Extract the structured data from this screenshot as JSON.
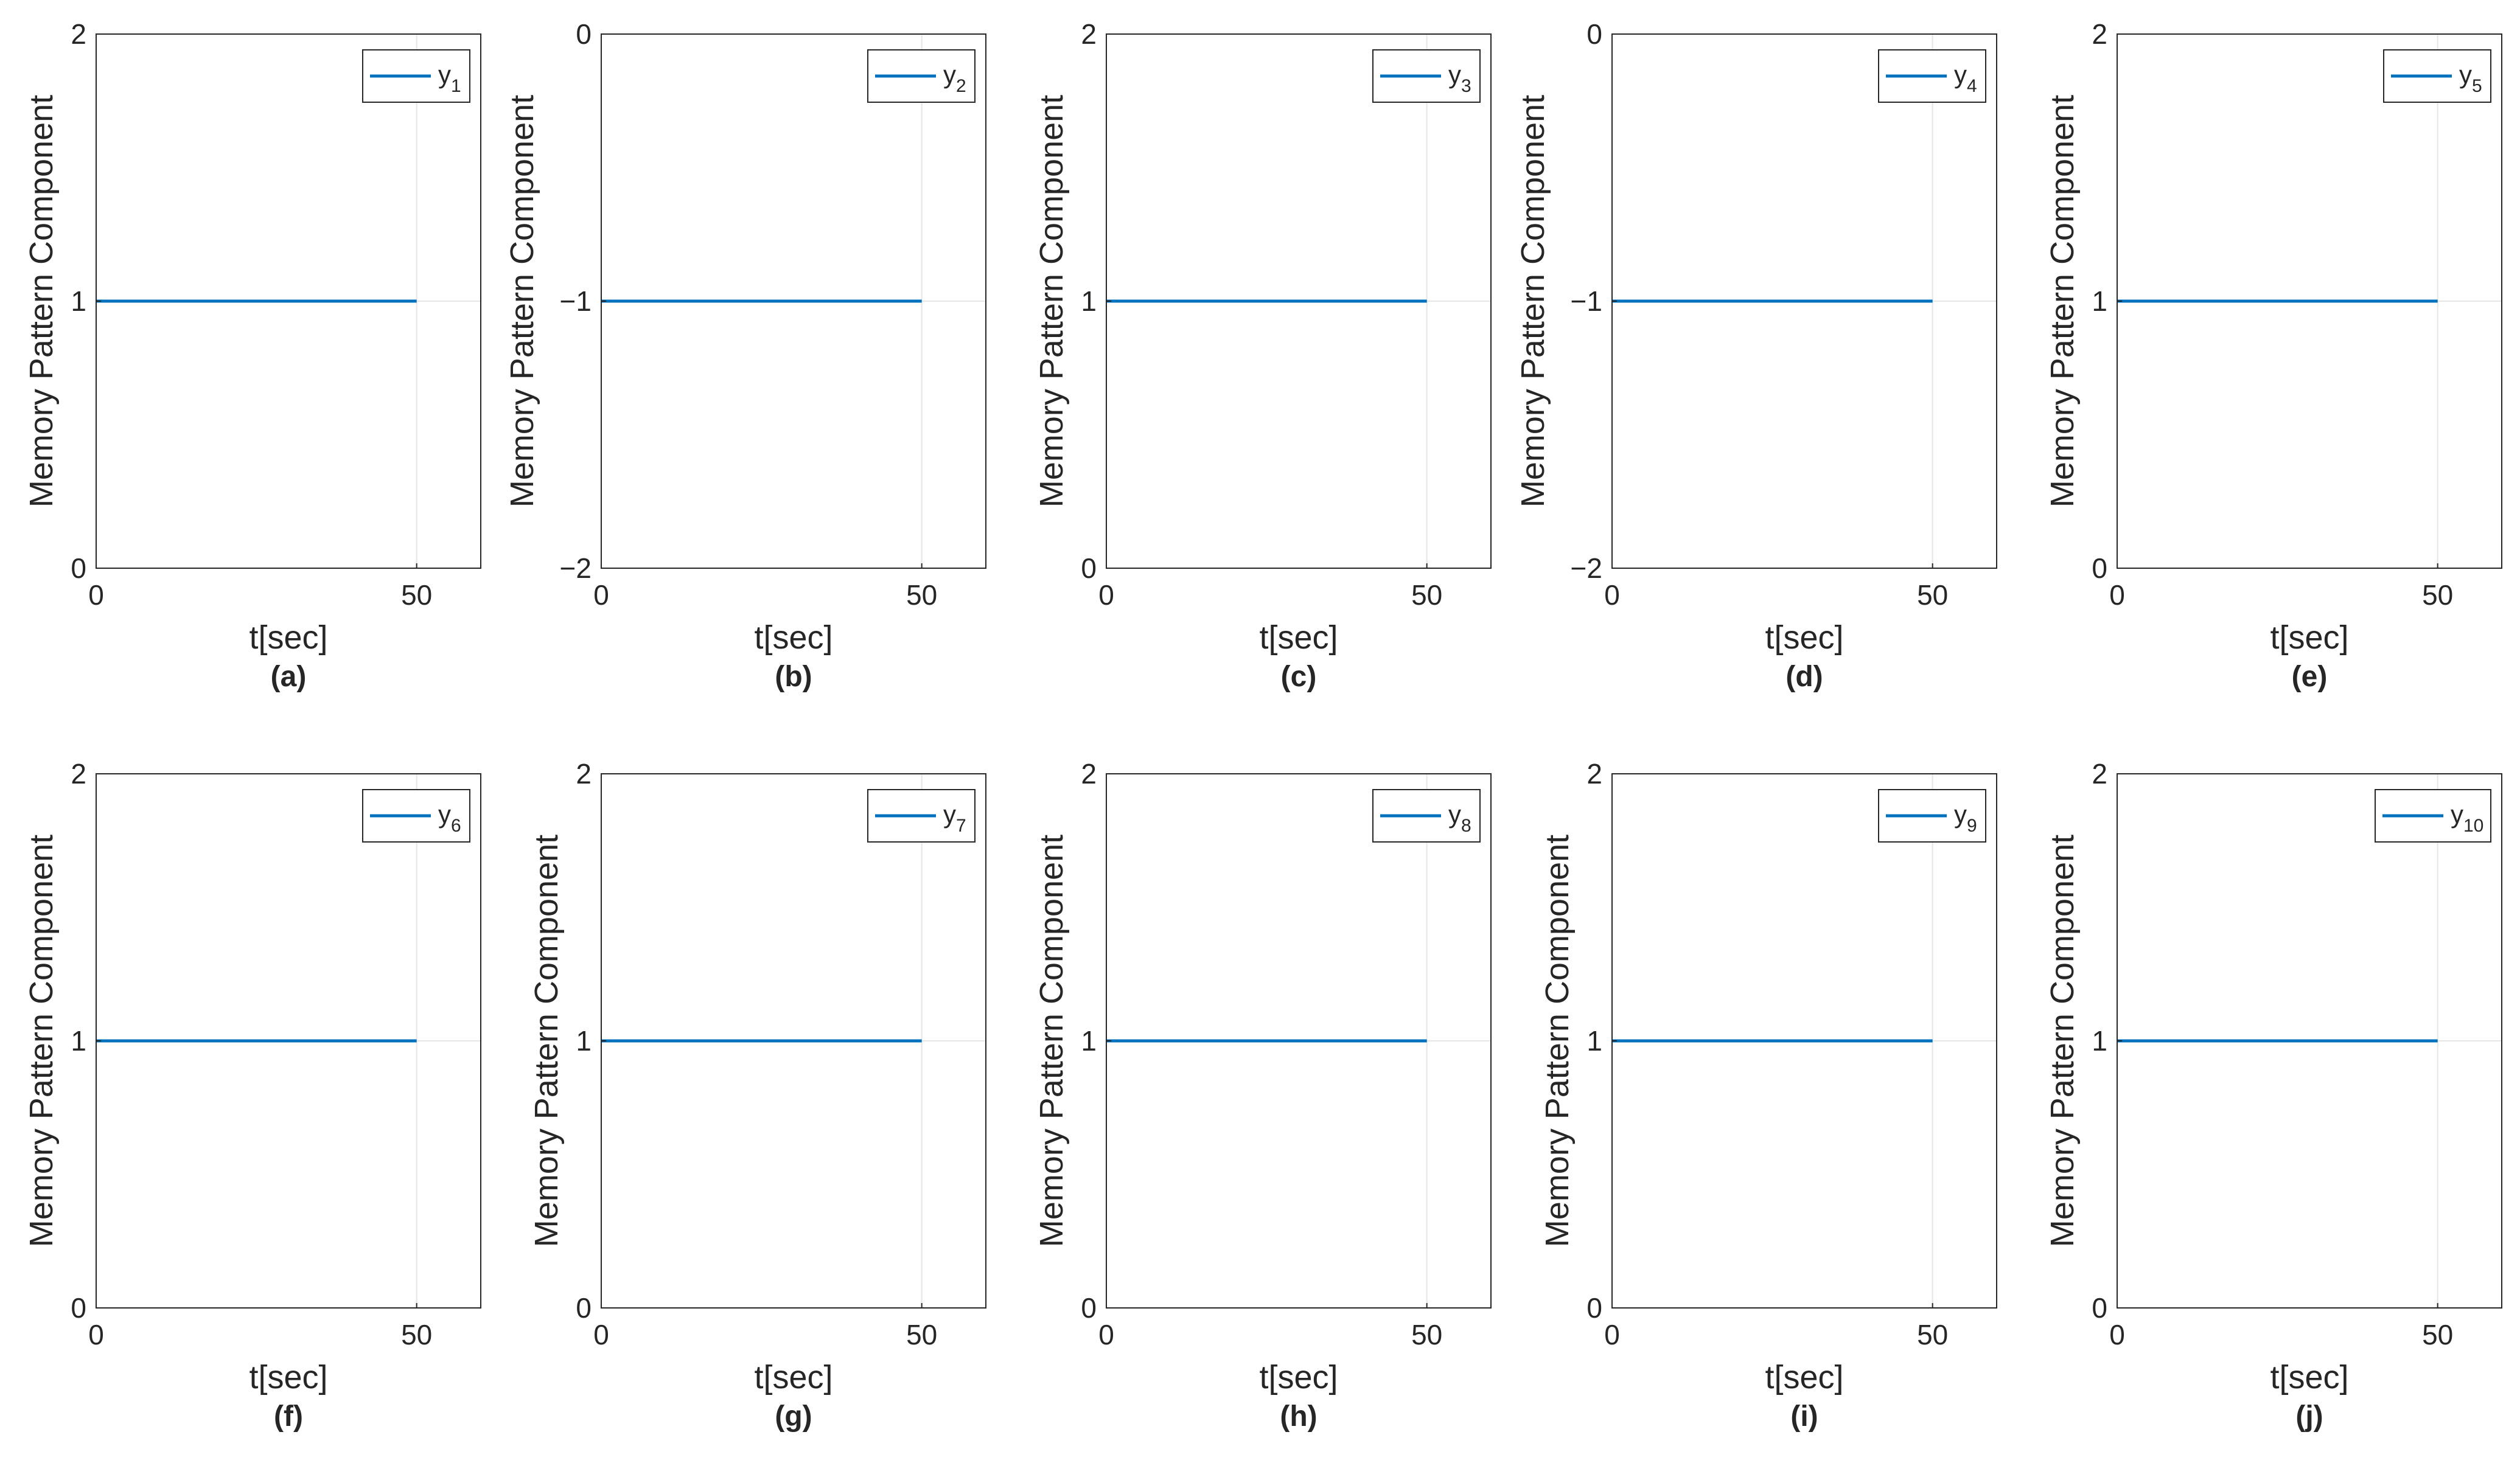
{
  "figure": {
    "background": "#ffffff",
    "line_color": "#0072BD",
    "grid_color": "#e6e6e6",
    "axis_color": "#262626"
  },
  "chart_data": [
    {
      "type": "line",
      "panel": "(a)",
      "title": "",
      "xlabel": "t[sec]",
      "ylabel": "Memory Pattern Component",
      "xlim": [
        0,
        60
      ],
      "ylim": [
        0,
        2
      ],
      "xticks": [
        0,
        50
      ],
      "yticks": [
        0,
        1,
        2
      ],
      "xtick_labels": [
        "0",
        "50"
      ],
      "ytick_labels": [
        "0",
        "1",
        "2"
      ],
      "grid": "on",
      "legend_position": "top-right",
      "series": [
        {
          "name": "y1",
          "legend_base": "y",
          "legend_sub": "1",
          "x": [
            0,
            50
          ],
          "y": [
            1,
            1
          ]
        }
      ]
    },
    {
      "type": "line",
      "panel": "(b)",
      "title": "",
      "xlabel": "t[sec]",
      "ylabel": "Memory Pattern Component",
      "xlim": [
        0,
        60
      ],
      "ylim": [
        -2,
        0
      ],
      "xticks": [
        0,
        50
      ],
      "yticks": [
        -2,
        -1,
        0
      ],
      "xtick_labels": [
        "0",
        "50"
      ],
      "ytick_labels": [
        "−2",
        "−1",
        "0"
      ],
      "grid": "on",
      "legend_position": "top-right",
      "series": [
        {
          "name": "y2",
          "legend_base": "y",
          "legend_sub": "2",
          "x": [
            0,
            50
          ],
          "y": [
            -1,
            -1
          ]
        }
      ]
    },
    {
      "type": "line",
      "panel": "(c)",
      "title": "",
      "xlabel": "t[sec]",
      "ylabel": "Memory Pattern Component",
      "xlim": [
        0,
        60
      ],
      "ylim": [
        0,
        2
      ],
      "xticks": [
        0,
        50
      ],
      "yticks": [
        0,
        1,
        2
      ],
      "xtick_labels": [
        "0",
        "50"
      ],
      "ytick_labels": [
        "0",
        "1",
        "2"
      ],
      "grid": "on",
      "legend_position": "top-right",
      "series": [
        {
          "name": "y3",
          "legend_base": "y",
          "legend_sub": "3",
          "x": [
            0,
            50
          ],
          "y": [
            1,
            1
          ]
        }
      ]
    },
    {
      "type": "line",
      "panel": "(d)",
      "title": "",
      "xlabel": "t[sec]",
      "ylabel": "Memory Pattern Component",
      "xlim": [
        0,
        60
      ],
      "ylim": [
        -2,
        0
      ],
      "xticks": [
        0,
        50
      ],
      "yticks": [
        -2,
        -1,
        0
      ],
      "xtick_labels": [
        "0",
        "50"
      ],
      "ytick_labels": [
        "−2",
        "−1",
        "0"
      ],
      "grid": "on",
      "legend_position": "top-right",
      "series": [
        {
          "name": "y4",
          "legend_base": "y",
          "legend_sub": "4",
          "x": [
            0,
            50
          ],
          "y": [
            -1,
            -1
          ]
        }
      ]
    },
    {
      "type": "line",
      "panel": "(e)",
      "title": "",
      "xlabel": "t[sec]",
      "ylabel": "Memory Pattern Component",
      "xlim": [
        0,
        60
      ],
      "ylim": [
        0,
        2
      ],
      "xticks": [
        0,
        50
      ],
      "yticks": [
        0,
        1,
        2
      ],
      "xtick_labels": [
        "0",
        "50"
      ],
      "ytick_labels": [
        "0",
        "1",
        "2"
      ],
      "grid": "on",
      "legend_position": "top-right",
      "series": [
        {
          "name": "y5",
          "legend_base": "y",
          "legend_sub": "5",
          "x": [
            0,
            50
          ],
          "y": [
            1,
            1
          ]
        }
      ]
    },
    {
      "type": "line",
      "panel": "(f)",
      "title": "",
      "xlabel": "t[sec]",
      "ylabel": "Memory Pattern Component",
      "xlim": [
        0,
        60
      ],
      "ylim": [
        0,
        2
      ],
      "xticks": [
        0,
        50
      ],
      "yticks": [
        0,
        1,
        2
      ],
      "xtick_labels": [
        "0",
        "50"
      ],
      "ytick_labels": [
        "0",
        "1",
        "2"
      ],
      "grid": "on",
      "legend_position": "top-right",
      "series": [
        {
          "name": "y6",
          "legend_base": "y",
          "legend_sub": "6",
          "x": [
            0,
            50
          ],
          "y": [
            1,
            1
          ]
        }
      ]
    },
    {
      "type": "line",
      "panel": "(g)",
      "title": "",
      "xlabel": "t[sec]",
      "ylabel": "Memory Pattern Component",
      "xlim": [
        0,
        60
      ],
      "ylim": [
        0,
        2
      ],
      "xticks": [
        0,
        50
      ],
      "yticks": [
        0,
        1,
        2
      ],
      "xtick_labels": [
        "0",
        "50"
      ],
      "ytick_labels": [
        "0",
        "1",
        "2"
      ],
      "grid": "on",
      "legend_position": "top-right",
      "series": [
        {
          "name": "y7",
          "legend_base": "y",
          "legend_sub": "7",
          "x": [
            0,
            50
          ],
          "y": [
            1,
            1
          ]
        }
      ]
    },
    {
      "type": "line",
      "panel": "(h)",
      "title": "",
      "xlabel": "t[sec]",
      "ylabel": "Memory Pattern Component",
      "xlim": [
        0,
        60
      ],
      "ylim": [
        0,
        2
      ],
      "xticks": [
        0,
        50
      ],
      "yticks": [
        0,
        1,
        2
      ],
      "xtick_labels": [
        "0",
        "50"
      ],
      "ytick_labels": [
        "0",
        "1",
        "2"
      ],
      "grid": "on",
      "legend_position": "top-right",
      "series": [
        {
          "name": "y8",
          "legend_base": "y",
          "legend_sub": "8",
          "x": [
            0,
            50
          ],
          "y": [
            1,
            1
          ]
        }
      ]
    },
    {
      "type": "line",
      "panel": "(i)",
      "title": "",
      "xlabel": "t[sec]",
      "ylabel": "Memory Pattern Component",
      "xlim": [
        0,
        60
      ],
      "ylim": [
        0,
        2
      ],
      "xticks": [
        0,
        50
      ],
      "yticks": [
        0,
        1,
        2
      ],
      "xtick_labels": [
        "0",
        "50"
      ],
      "ytick_labels": [
        "0",
        "1",
        "2"
      ],
      "grid": "on",
      "legend_position": "top-right",
      "series": [
        {
          "name": "y9",
          "legend_base": "y",
          "legend_sub": "9",
          "x": [
            0,
            50
          ],
          "y": [
            1,
            1
          ]
        }
      ]
    },
    {
      "type": "line",
      "panel": "(j)",
      "title": "",
      "xlabel": "t[sec]",
      "ylabel": "Memory Pattern Component",
      "xlim": [
        0,
        60
      ],
      "ylim": [
        0,
        2
      ],
      "xticks": [
        0,
        50
      ],
      "yticks": [
        0,
        1,
        2
      ],
      "xtick_labels": [
        "0",
        "50"
      ],
      "ytick_labels": [
        "0",
        "1",
        "2"
      ],
      "grid": "on",
      "legend_position": "top-right",
      "series": [
        {
          "name": "y10",
          "legend_base": "y",
          "legend_sub": "10",
          "x": [
            0,
            50
          ],
          "y": [
            1,
            1
          ]
        }
      ]
    }
  ]
}
